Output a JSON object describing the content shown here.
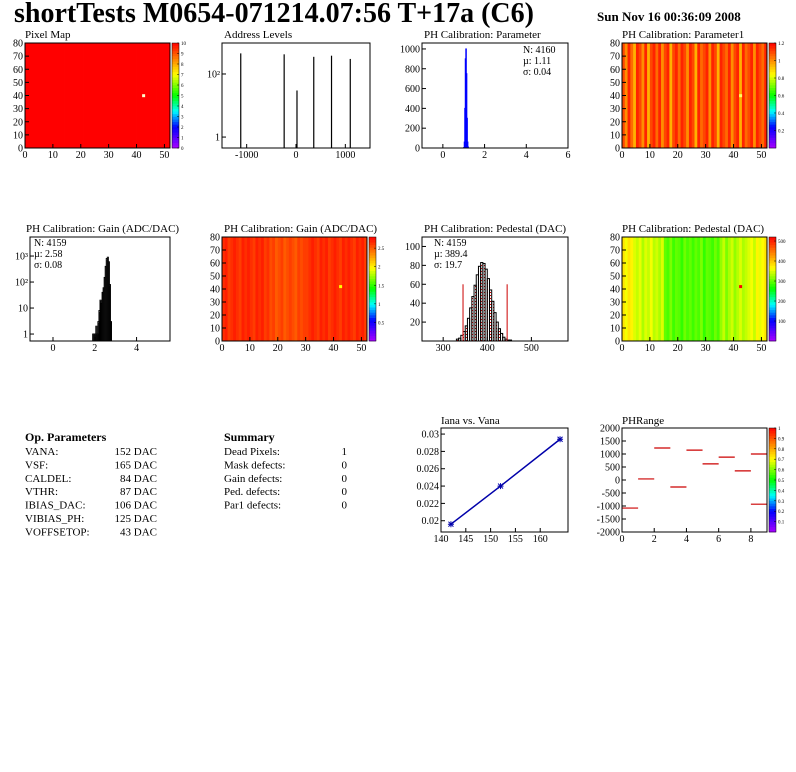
{
  "header": {
    "title": "shortTests M0654-071214.07:56 T+17a (C6)",
    "date": "Sun Nov 16 00:36:09 2008"
  },
  "chart_data": [
    {
      "type": "heatmap",
      "title": "Pixel Map",
      "xlim": [
        0,
        52
      ],
      "xticks": [
        0,
        10,
        20,
        30,
        40,
        50
      ],
      "ylim": [
        0,
        80
      ],
      "yticks": [
        0,
        10,
        20,
        30,
        40,
        50,
        60,
        70,
        80
      ],
      "zlim": [
        0,
        10
      ],
      "zticks": [
        0,
        1,
        2,
        3,
        4,
        5,
        6,
        7,
        8,
        9,
        10
      ],
      "column_values": [
        10,
        10,
        10,
        10,
        10,
        10,
        10,
        10,
        10,
        10,
        10,
        10,
        10,
        10,
        10,
        10,
        10,
        10,
        10,
        10,
        10,
        10,
        10,
        10,
        10,
        10,
        10,
        10,
        10,
        10,
        10,
        10,
        10,
        10,
        10,
        10,
        10,
        10,
        10,
        10,
        10,
        10,
        10,
        10,
        10,
        10,
        10,
        10,
        10,
        10,
        10,
        10
      ],
      "markers": [
        {
          "x": 42,
          "y": 40,
          "color": "#ffffcc"
        }
      ]
    },
    {
      "type": "spikes",
      "title": "Address Levels",
      "log_y": true,
      "xlim": [
        -1500,
        1500
      ],
      "xticks": [
        -1000,
        0,
        1000
      ],
      "ylim": [
        0.45,
        960
      ],
      "yticks": [
        1,
        {
          "value": 100,
          "label": "10²"
        }
      ],
      "x": [
        -1120,
        -240,
        20,
        360,
        720,
        1100
      ],
      "values": [
        450,
        420,
        30,
        350,
        380,
        300
      ],
      "color": "#000000"
    },
    {
      "type": "histogram",
      "title": "PH Calibration: Parameter",
      "xlim": [
        -1,
        6
      ],
      "xticks": [
        0,
        2,
        4,
        6
      ],
      "ylim": [
        0,
        1060
      ],
      "yticks": [
        0,
        200,
        400,
        600,
        800,
        1000
      ],
      "bins": [
        1.0,
        1.025,
        1.05,
        1.075,
        1.1,
        1.125,
        1.15,
        1.175,
        1.2,
        1.225
      ],
      "values": [
        5,
        60,
        400,
        900,
        1000,
        750,
        300,
        60,
        10
      ],
      "color": "#0000ff",
      "stats": [
        {
          "text": "N: 4160",
          "color": "#0000ff"
        },
        {
          "text": "µ: 1.11",
          "color": "#0000ff"
        },
        {
          "text": "σ: 0.04",
          "color": "#0000ff"
        }
      ]
    },
    {
      "type": "heatmap",
      "title": "PH Calibration: Parameter1",
      "xlim": [
        0,
        52
      ],
      "xticks": [
        0,
        10,
        20,
        30,
        40,
        50
      ],
      "ylim": [
        0,
        80
      ],
      "yticks": [
        0,
        10,
        20,
        30,
        40,
        50,
        60,
        70,
        80
      ],
      "zlim": [
        0,
        1.2
      ],
      "zticks": [
        0.2,
        0.4,
        0.6,
        0.8,
        1,
        1.2
      ],
      "column_values": [
        1.1,
        1.0,
        1.15,
        1.05,
        0.95,
        1.15,
        1.1,
        1.0,
        1.15,
        0.95,
        1.1,
        1.15,
        1.05,
        1.15,
        1.0,
        1.1,
        1.15,
        0.95,
        1.1,
        1.15,
        1.05,
        1.15,
        1.1,
        1.0,
        1.15,
        1.1,
        0.95,
        1.15,
        1.05,
        1.1,
        1.15,
        1.0,
        1.15,
        1.1,
        0.95,
        1.15,
        1.1,
        1.05,
        1.15,
        1.0,
        1.1,
        1.15,
        0.95,
        1.15,
        1.05,
        1.1,
        1.15,
        1.0,
        1.15,
        1.1,
        1.05,
        1.15
      ],
      "markers": [
        {
          "x": 42,
          "y": 40,
          "color": "#ffff66"
        }
      ]
    },
    {
      "type": "histogram",
      "title": "PH Calibration: Gain (ADC/DAC)",
      "log_y": true,
      "xlim": [
        -1.1,
        5.6
      ],
      "xticks": [
        0,
        2,
        4
      ],
      "ylim": [
        0.54,
        5400
      ],
      "yticks": [
        1,
        10,
        {
          "value": 100,
          "label": "10²"
        },
        {
          "value": 1000,
          "label": "10³"
        }
      ],
      "bins": [
        1.9,
        1.95,
        2.0,
        2.05,
        2.1,
        2.15,
        2.2,
        2.25,
        2.3,
        2.35,
        2.4,
        2.45,
        2.5,
        2.55,
        2.6,
        2.65,
        2.7,
        2.75,
        2.8
      ],
      "values": [
        1,
        1,
        1,
        2,
        1,
        3,
        8,
        20,
        15,
        40,
        60,
        150,
        400,
        800,
        900,
        600,
        80,
        3
      ],
      "color": "#000000",
      "stats": [
        {
          "text": "N: 4159",
          "color": "#000000"
        },
        {
          "text": "µ: 2.58",
          "color": "#000000"
        },
        {
          "text": "σ: 0.08",
          "color": "#000000"
        }
      ]
    },
    {
      "type": "heatmap",
      "title": "PH Calibration: Gain (ADC/DAC)",
      "xlim": [
        0,
        52
      ],
      "xticks": [
        0,
        10,
        20,
        30,
        40,
        50
      ],
      "ylim": [
        0,
        80
      ],
      "yticks": [
        0,
        10,
        20,
        30,
        40,
        50,
        60,
        70,
        80
      ],
      "zlim": [
        0,
        2.8
      ],
      "zticks": [
        0.5,
        1,
        1.5,
        2,
        2.5
      ],
      "column_values": [
        2.65,
        2.7,
        2.6,
        2.65,
        2.7,
        2.65,
        2.6,
        2.7,
        2.65,
        2.7,
        2.65,
        2.6,
        2.7,
        2.65,
        2.7,
        2.6,
        2.65,
        2.55,
        2.6,
        2.5,
        2.55,
        2.6,
        2.5,
        2.55,
        2.6,
        2.55,
        2.5,
        2.6,
        2.55,
        2.6,
        2.6,
        2.65,
        2.7,
        2.65,
        2.6,
        2.7,
        2.65,
        2.7,
        2.6,
        2.65,
        2.7,
        2.65,
        2.6,
        2.7,
        2.65,
        2.7,
        2.65,
        2.6,
        2.7,
        2.65,
        2.7,
        2.6
      ],
      "markers": [
        {
          "x": 42,
          "y": 42,
          "color": "#ffff00"
        }
      ]
    },
    {
      "type": "histogram",
      "title": "PH Calibration: Pedestal (DAC)",
      "xlim": [
        252,
        583
      ],
      "xticks": [
        300,
        400,
        500
      ],
      "ylim": [
        0,
        110
      ],
      "yticks": [
        20,
        40,
        60,
        80,
        100
      ],
      "bins": [
        330,
        335,
        340,
        345,
        350,
        355,
        360,
        365,
        370,
        375,
        380,
        385,
        390,
        395,
        400,
        405,
        410,
        415,
        420,
        425,
        430,
        435,
        440,
        445,
        450,
        455,
        460
      ],
      "values": [
        2,
        3,
        6,
        10,
        16,
        24,
        35,
        47,
        59,
        70,
        79,
        83,
        82,
        76,
        66,
        54,
        42,
        30,
        20,
        13,
        8,
        4,
        2,
        1,
        1,
        0
      ],
      "color": "#000000",
      "hatch": true,
      "cuts": [
        345,
        445
      ],
      "cut_height": 60,
      "cut_color": "#cc0000",
      "stats": [
        {
          "text": "N: 4159",
          "color": "#000000"
        },
        {
          "text": "µ: 389.4",
          "color": "#ff0000"
        },
        {
          "text": "σ: 19.7",
          "color": "#ff0000"
        }
      ]
    },
    {
      "type": "heatmap",
      "title": "PH Calibration: Pedestal (DAC)",
      "xlim": [
        0,
        52
      ],
      "xticks": [
        0,
        10,
        20,
        30,
        40,
        50
      ],
      "ylim": [
        0,
        80
      ],
      "yticks": [
        0,
        10,
        20,
        30,
        40,
        50,
        60,
        70,
        80
      ],
      "zlim": [
        0,
        520
      ],
      "zticks": [
        100,
        200,
        300,
        400,
        500
      ],
      "column_values": [
        380,
        360,
        380,
        370,
        350,
        340,
        355,
        330,
        350,
        340,
        360,
        335,
        345,
        330,
        350,
        300,
        290,
        310,
        285,
        300,
        295,
        280,
        305,
        290,
        300,
        285,
        300,
        290,
        310,
        280,
        300,
        295,
        285,
        305,
        290,
        320,
        340,
        310,
        330,
        345,
        320,
        335,
        350,
        330,
        340,
        350,
        360,
        340,
        370,
        355,
        365,
        380
      ],
      "markers": [
        {
          "x": 42,
          "y": 42,
          "color": "#ff0000"
        }
      ]
    },
    {
      "type": "line",
      "title": "Iana vs. Vana",
      "xlim": [
        140,
        165.6
      ],
      "xticks": [
        140,
        145,
        150,
        155,
        160
      ],
      "ylim": [
        0.0187,
        0.0307
      ],
      "yticks": [
        0.02,
        0.022,
        0.024,
        0.026,
        0.028,
        0.03
      ],
      "x": [
        142,
        152,
        164
      ],
      "values": [
        0.0196,
        0.024,
        0.0294
      ],
      "color": "#0000aa"
    },
    {
      "type": "segments",
      "title": "PHRange",
      "xlim": [
        0,
        9
      ],
      "xticks": [
        0,
        2,
        4,
        6,
        8
      ],
      "ylim": [
        -2000,
        2000
      ],
      "yticks": [
        -2000,
        -1500,
        -1000,
        -500,
        0,
        500,
        1000,
        1500,
        2000
      ],
      "zlim": [
        0,
        1
      ],
      "zticks": [
        0.1,
        0.2,
        0.3,
        0.4,
        0.5,
        0.6,
        0.7,
        0.8,
        0.9,
        1
      ],
      "x": [
        0,
        1,
        2,
        3,
        4,
        5,
        6,
        7,
        8,
        8
      ],
      "values": [
        -1080,
        40,
        1230,
        -270,
        1150,
        620,
        880,
        350,
        1000,
        -930
      ],
      "color": "#cc0000"
    }
  ],
  "op_parameters": {
    "title": "Op. Parameters",
    "rows": [
      [
        "VANA:",
        "152 DAC"
      ],
      [
        "VSF:",
        "165 DAC"
      ],
      [
        "CALDEL:",
        "84 DAC"
      ],
      [
        "VTHR:",
        "87 DAC"
      ],
      [
        "IBIAS_DAC:",
        "106 DAC"
      ],
      [
        "VIBIAS_PH:",
        "125 DAC"
      ],
      [
        "VOFFSETOP:",
        "43 DAC"
      ]
    ]
  },
  "summary": {
    "title": "Summary",
    "rows": [
      {
        "label": "Dead Pixels:",
        "value": 1,
        "color": "#000000"
      },
      {
        "label": "Mask defects:",
        "value": 0,
        "color": "#000000"
      },
      {
        "label": "Gain defects:",
        "value": 0,
        "color": "#000000"
      },
      {
        "label": "Ped. defects:",
        "value": 0,
        "color": "#ff0000"
      },
      {
        "label": "Par1 defects:",
        "value": 0,
        "color": "#0000ff"
      }
    ]
  }
}
